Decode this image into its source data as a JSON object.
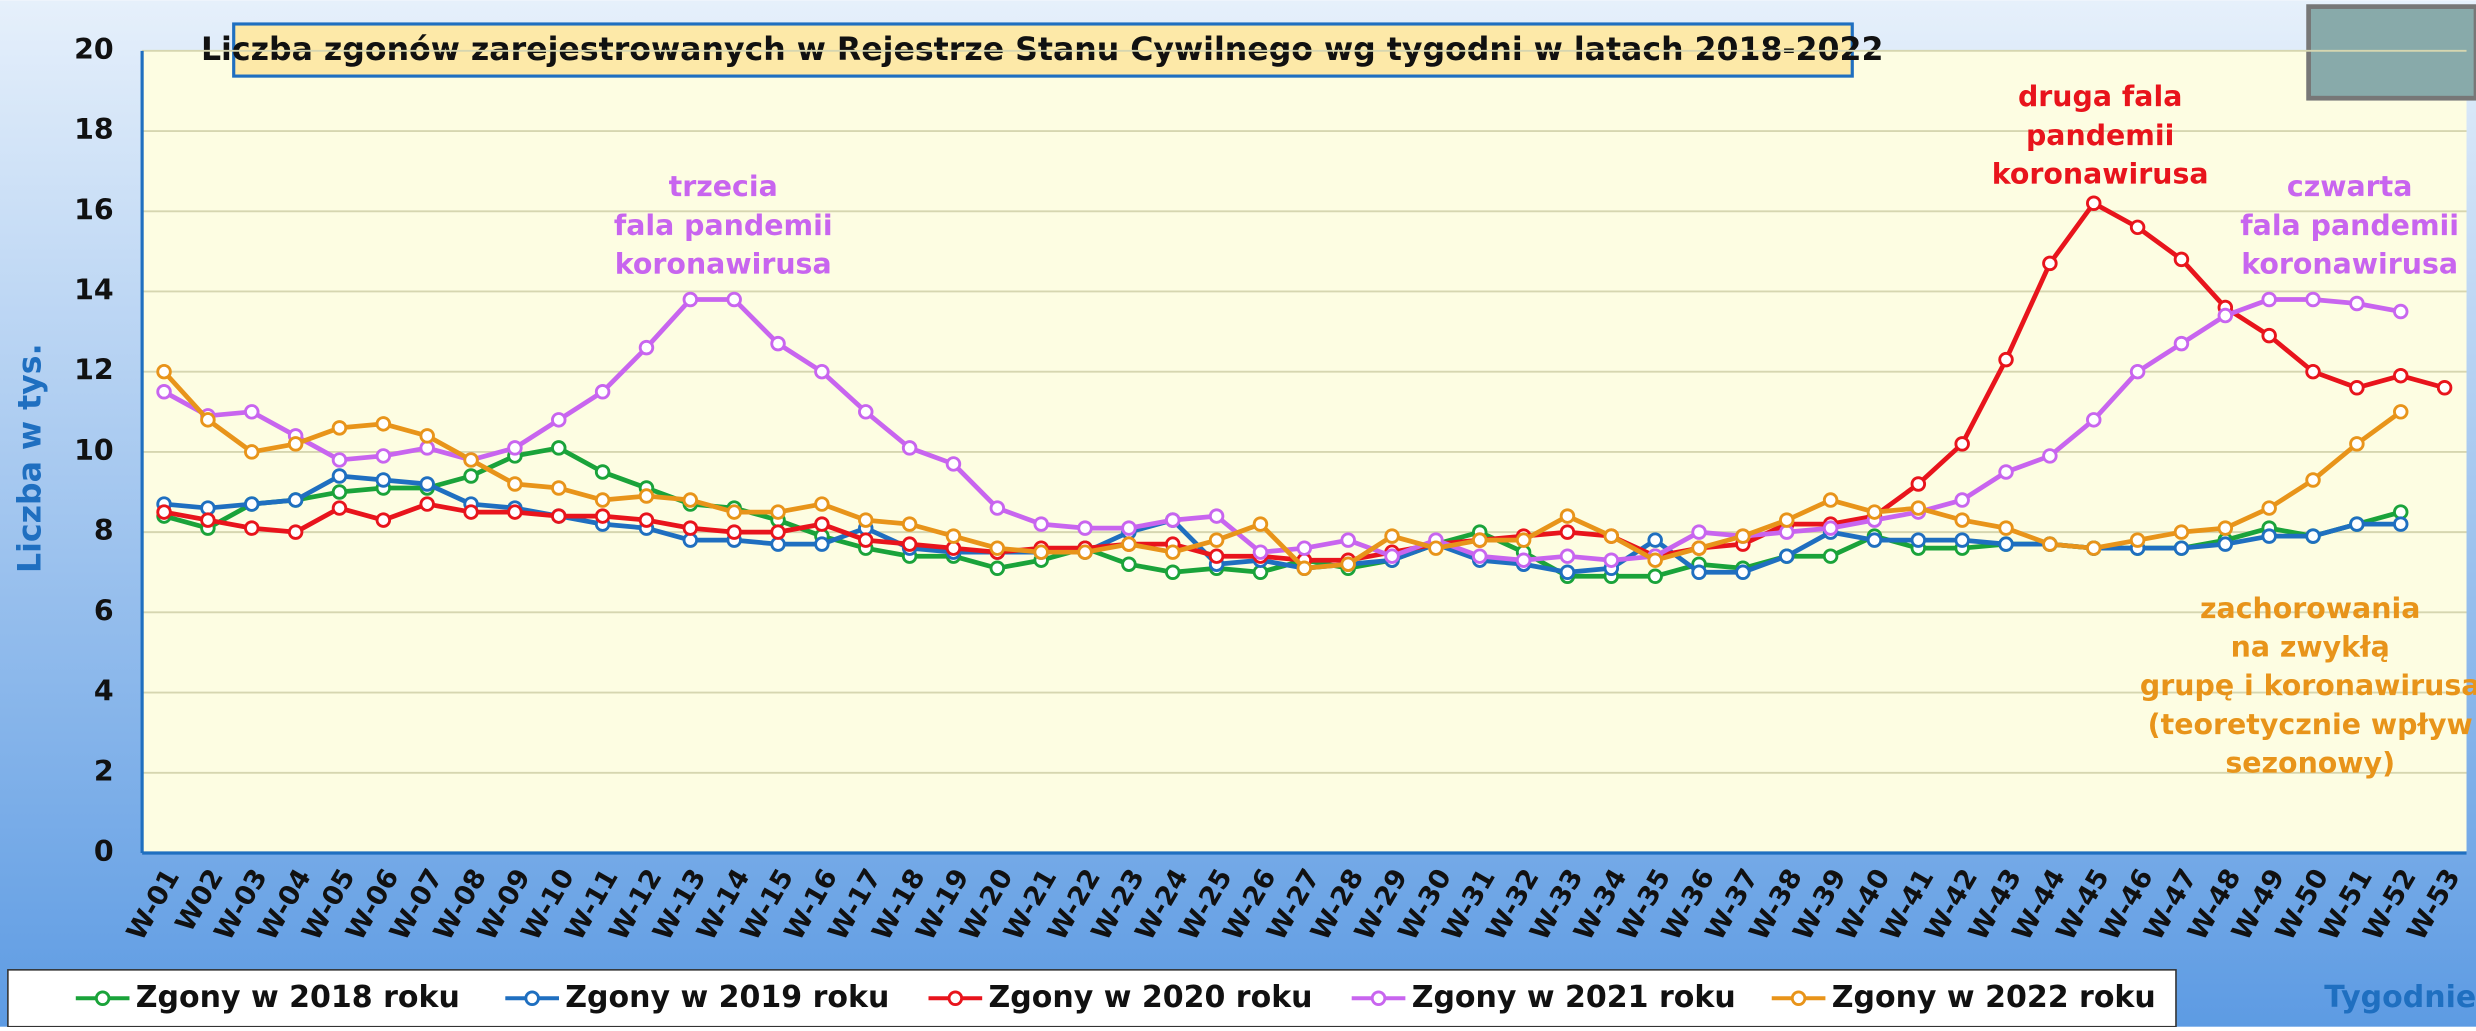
{
  "chart_data": {
    "type": "line",
    "title": "Liczba zgonów zarejestrowanych w Rejestrze Stanu Cywilnego wg tygodni w latach 2018-2022",
    "y_label": "Liczba w tys.",
    "x_label": "Tygodnie",
    "categories": [
      "W-01",
      "W02",
      "W-03",
      "W-04",
      "W-05",
      "W-06",
      "W-07",
      "W-08",
      "W-09",
      "W-10",
      "W-11",
      "W-12",
      "W-13",
      "W-14",
      "W-15",
      "W-16",
      "W-17",
      "W-18",
      "W-19",
      "W-20",
      "W-21",
      "W-22",
      "W-23",
      "W-24",
      "W-25",
      "W-26",
      "W-27",
      "W-28",
      "W-29",
      "W-30",
      "W-31",
      "W-32",
      "W-33",
      "W-34",
      "W-35",
      "W-36",
      "W-37",
      "W-38",
      "W-39",
      "W-40",
      "W-41",
      "W-42",
      "W-43",
      "W-44",
      "W-45",
      "W-46",
      "W-47",
      "W-48",
      "W-49",
      "W-50",
      "W-51",
      "W-52",
      "W-53"
    ],
    "series": [
      {
        "name": "Zgony w 2018 roku",
        "color": "#1aa33a",
        "values": [
          8.4,
          8.1,
          8.7,
          8.8,
          9.0,
          9.1,
          9.1,
          9.4,
          9.9,
          10.1,
          9.5,
          9.1,
          8.7,
          8.6,
          8.3,
          7.9,
          7.6,
          7.4,
          7.4,
          7.1,
          7.3,
          7.6,
          7.2,
          7.0,
          7.1,
          7.0,
          7.3,
          7.1,
          7.3,
          7.7,
          8.0,
          7.5,
          6.9,
          6.9,
          6.9,
          7.2,
          7.1,
          7.4,
          7.4,
          7.9,
          7.6,
          7.6,
          7.7,
          7.7,
          7.6,
          7.6,
          7.6,
          7.8,
          8.1,
          7.9,
          8.2,
          8.5,
          null
        ]
      },
      {
        "name": "Zgony w 2019 roku",
        "color": "#1f6fc0",
        "values": [
          8.7,
          8.6,
          8.7,
          8.8,
          9.4,
          9.3,
          9.2,
          8.7,
          8.6,
          8.4,
          8.2,
          8.1,
          7.8,
          7.8,
          7.7,
          7.7,
          8.1,
          7.6,
          7.5,
          7.5,
          7.5,
          7.5,
          8.0,
          8.3,
          7.2,
          7.3,
          7.1,
          7.2,
          7.3,
          7.7,
          7.3,
          7.2,
          7.0,
          7.1,
          7.8,
          7.0,
          7.0,
          7.4,
          8.0,
          7.8,
          7.8,
          7.8,
          7.7,
          7.7,
          7.6,
          7.6,
          7.6,
          7.7,
          7.9,
          7.9,
          8.2,
          8.2,
          null
        ]
      },
      {
        "name": "Zgony w 2020 roku",
        "color": "#e8141c",
        "values": [
          8.5,
          8.3,
          8.1,
          8.0,
          8.6,
          8.3,
          8.7,
          8.5,
          8.5,
          8.4,
          8.4,
          8.3,
          8.1,
          8.0,
          8.0,
          8.2,
          7.8,
          7.7,
          7.6,
          7.5,
          7.6,
          7.6,
          7.7,
          7.7,
          7.4,
          7.4,
          7.3,
          7.3,
          7.5,
          7.7,
          7.8,
          7.9,
          8.0,
          7.9,
          7.4,
          7.6,
          7.7,
          8.2,
          8.2,
          8.4,
          9.2,
          10.2,
          12.3,
          14.7,
          16.2,
          15.6,
          14.8,
          13.6,
          12.9,
          12.0,
          11.6,
          11.9,
          11.6
        ]
      },
      {
        "name": "Zgony w 2021 roku",
        "color": "#c865ef",
        "values": [
          11.5,
          10.9,
          11.0,
          10.4,
          9.8,
          9.9,
          10.1,
          9.8,
          10.1,
          10.8,
          11.5,
          12.6,
          13.8,
          13.8,
          12.7,
          12.0,
          11.0,
          10.1,
          9.7,
          8.6,
          8.2,
          8.1,
          8.1,
          8.3,
          8.4,
          7.5,
          7.6,
          7.8,
          7.4,
          7.8,
          7.4,
          7.3,
          7.4,
          7.3,
          7.4,
          8.0,
          7.9,
          8.0,
          8.1,
          8.3,
          8.5,
          8.8,
          9.5,
          9.9,
          10.8,
          12.0,
          12.7,
          13.4,
          13.8,
          13.8,
          13.7,
          13.5,
          null
        ]
      },
      {
        "name": "Zgony w 2022 roku",
        "color": "#e8941a",
        "values": [
          12.0,
          10.8,
          10.0,
          10.2,
          10.6,
          10.7,
          10.4,
          9.8,
          9.2,
          9.1,
          8.8,
          8.9,
          8.8,
          8.5,
          8.5,
          8.7,
          8.3,
          8.2,
          7.9,
          7.6,
          7.5,
          7.5,
          7.7,
          7.5,
          7.8,
          8.2,
          7.1,
          7.2,
          7.9,
          7.6,
          7.8,
          7.8,
          8.4,
          7.9,
          7.3,
          7.6,
          7.9,
          8.3,
          8.8,
          8.5,
          8.6,
          8.3,
          8.1,
          7.7,
          7.6,
          7.8,
          8.0,
          8.1,
          8.6,
          9.3,
          10.2,
          11.0,
          null
        ]
      }
    ],
    "ylim": [
      0,
      20
    ],
    "yticks": [
      0,
      2,
      4,
      6,
      8,
      10,
      12,
      14,
      16,
      18,
      20
    ],
    "grid": true,
    "annotations": [
      {
        "lines": [
          "trzecia",
          "fala pandemii",
          "koronawirusa"
        ],
        "color": "#c865ef"
      },
      {
        "lines": [
          "druga fala",
          "pandemii",
          "koronawirusa"
        ],
        "color": "#e8141c"
      },
      {
        "lines": [
          "czwarta",
          "fala pandemii",
          "koronawirusa"
        ],
        "color": "#c865ef"
      },
      {
        "lines": [
          "zachorowania",
          "na zwykłą",
          "grupę i koronawirusa",
          "(teoretycznie wpływ",
          "sezonowy)"
        ],
        "color": "#e8941a"
      }
    ]
  }
}
